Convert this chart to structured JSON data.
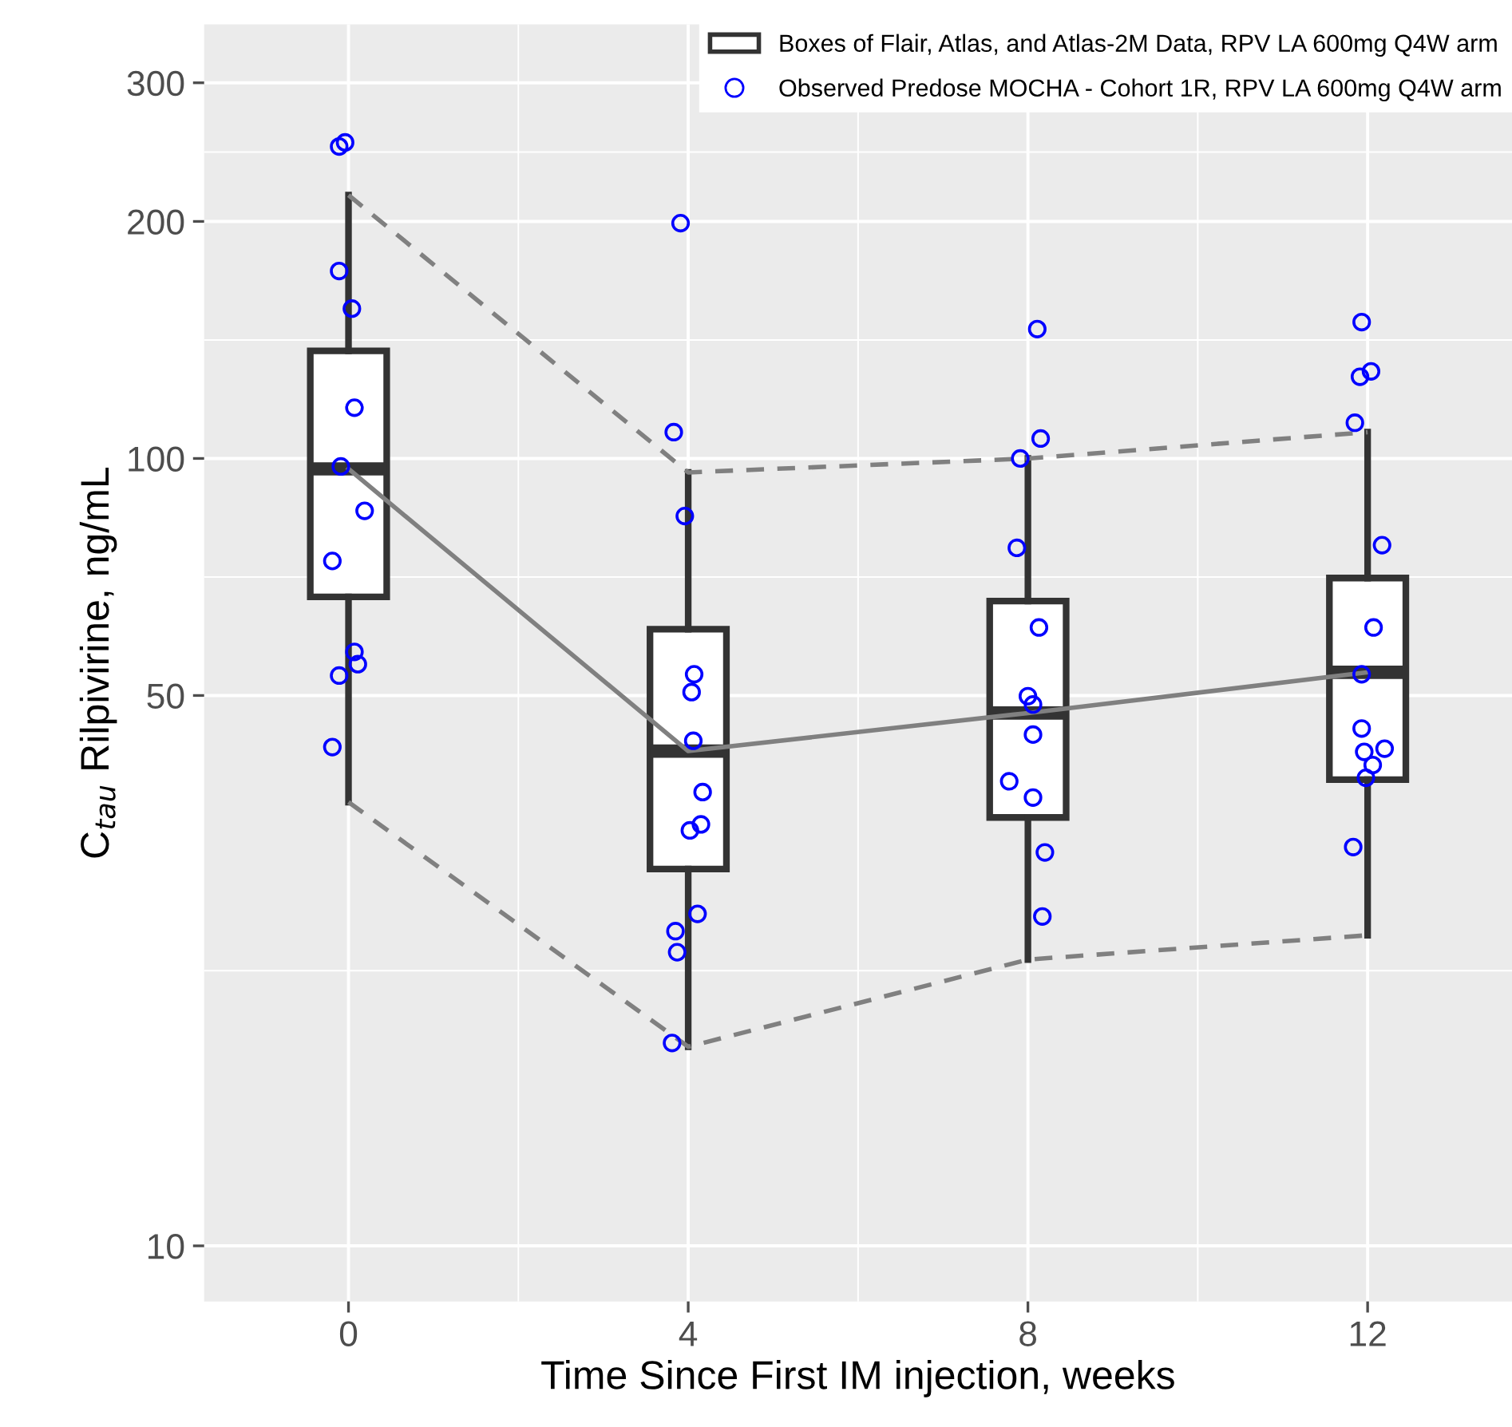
{
  "chart_data": {
    "type": "box",
    "xlabel": "Time Since First IM injection, weeks",
    "ylabel": "C$_{tau}$ Rilpivirine, ng/mL",
    "xlim": [
      -1.7,
      13.7
    ],
    "xticks": [
      0,
      4,
      8,
      12
    ],
    "ylim": [
      8.5,
      356
    ],
    "yticks": [
      10,
      50,
      100,
      200,
      300
    ],
    "log": "y",
    "grid": true,
    "legend": "top right",
    "series": [
      {
        "name": "Boxes of Flair, Atlas, and Atlas-2M Data, RPV LA 600mg Q4W arm",
        "color": "#333333",
        "x": [
          0,
          4,
          8,
          12
        ],
        "boxes": [
          {
            "low": 36.6,
            "q1": 66.7,
            "median": 97,
            "q3": 137,
            "high": 216
          },
          {
            "low": 17.9,
            "q1": 30.1,
            "median": 42.5,
            "q3": 60.7,
            "high": 96
          },
          {
            "low": 23.1,
            "q1": 35.0,
            "median": 47.5,
            "q3": 65.9,
            "high": 100
          },
          {
            "low": 24.8,
            "q1": 39.1,
            "median": 53.5,
            "q3": 70.5,
            "high": 108
          }
        ]
      },
      {
        "type": "line",
        "color": "#808080",
        "line_style": "dashed",
        "x": [
          0,
          4,
          8,
          12
        ],
        "values": [
          216,
          96,
          100,
          108
        ]
      },
      {
        "type": "line",
        "color": "#808080",
        "line_style": "dashed",
        "x": [
          0,
          4,
          8,
          12
        ],
        "values": [
          36.6,
          17.9,
          23.1,
          24.8
        ]
      },
      {
        "type": "line",
        "color": "#808080",
        "line_style": "solid",
        "x": [
          0,
          4,
          8,
          12
        ],
        "values": [
          97,
          42.5,
          47.5,
          53.5
        ]
      },
      {
        "type": "scatter",
        "name": "Observed Predose MOCHA - Cohort 1R, RPV LA 600mg Q4W arm",
        "color": "#0000ff",
        "marker": "circle",
        "x": [
          -0.11,
          -0.04,
          -0.11,
          0.04,
          0.07,
          -0.09,
          0.19,
          -0.19,
          0.07,
          0.11,
          -0.11,
          -0.19,
          3.91,
          3.83,
          3.96,
          4.07,
          4.04,
          4.06,
          4.17,
          4.15,
          4.02,
          4.11,
          3.85,
          3.87,
          3.81,
          8.11,
          8.15,
          7.91,
          7.87,
          8.13,
          8.0,
          8.06,
          8.06,
          7.78,
          8.06,
          8.2,
          8.17,
          11.93,
          11.91,
          12.04,
          11.85,
          12.17,
          12.07,
          11.93,
          11.93,
          11.96,
          12.2,
          12.06,
          11.98,
          11.83
        ],
        "values": [
          249,
          252,
          173,
          155,
          116,
          97.7,
          85.8,
          74.1,
          56.8,
          54.8,
          53.0,
          43.0,
          199,
          108,
          84.5,
          53.2,
          50.5,
          43.8,
          37.7,
          34.3,
          33.7,
          26.4,
          25.1,
          23.6,
          18.1,
          146,
          106,
          100,
          77,
          61,
          49.9,
          48.7,
          44.6,
          38.9,
          37.1,
          31.6,
          26.2,
          149,
          127,
          129,
          111,
          77.6,
          61,
          53.2,
          45.4,
          42.4,
          42.8,
          40.8,
          39.3,
          32.1
        ]
      }
    ]
  }
}
